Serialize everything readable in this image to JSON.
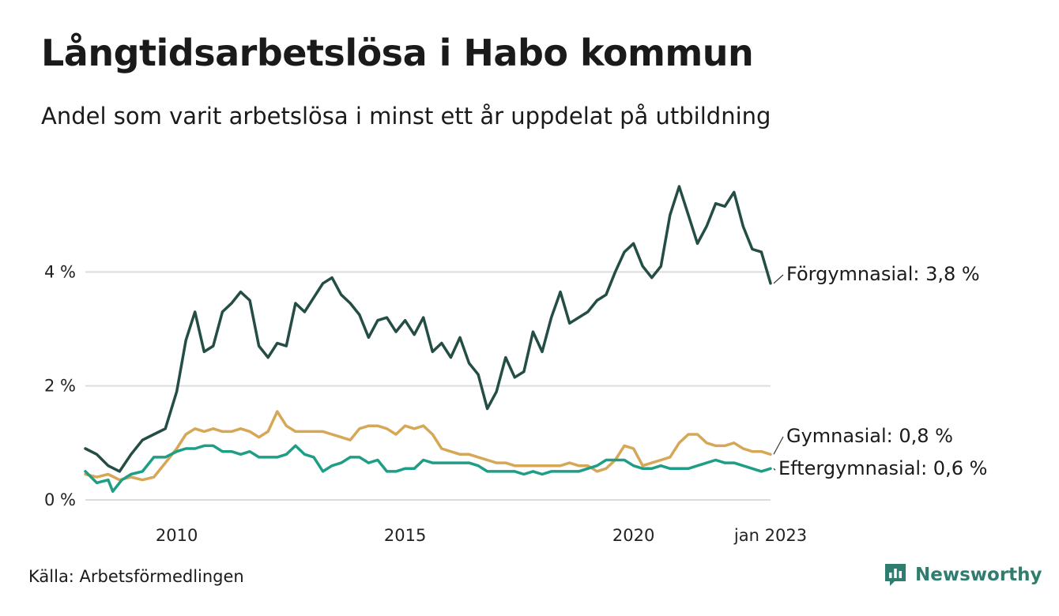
{
  "chart_data": {
    "type": "line",
    "title": "Långtidsarbetslösa i Habo kommun",
    "subtitle": "Andel som varit arbetslösa i minst ett år uppdelat på utbildning",
    "source": "Källa: Arbetsförmedlingen",
    "brand": "Newsworthy",
    "y_ticks": [
      {
        "value": 0,
        "label": "0 %"
      },
      {
        "value": 2,
        "label": "2 %"
      },
      {
        "value": 4,
        "label": "4 %"
      }
    ],
    "x_ticks": [
      {
        "value": 2010,
        "label": "2010"
      },
      {
        "value": 2015,
        "label": "2015"
      },
      {
        "value": 2020,
        "label": "2020"
      },
      {
        "value": 2023,
        "label": "jan 2023"
      }
    ],
    "xlim": [
      2008.0,
      2023.0
    ],
    "ylim": [
      0,
      6
    ],
    "grid": true,
    "legend": "end-labels",
    "series": [
      {
        "name": "Förgymnasial",
        "end_label": "Förgymnasial: 3,8 %",
        "color": "#234d45",
        "points": [
          [
            2008.0,
            0.9
          ],
          [
            2008.25,
            0.8
          ],
          [
            2008.5,
            0.6
          ],
          [
            2008.75,
            0.5
          ],
          [
            2009.0,
            0.8
          ],
          [
            2009.25,
            1.05
          ],
          [
            2009.5,
            1.15
          ],
          [
            2009.75,
            1.25
          ],
          [
            2010.0,
            1.9
          ],
          [
            2010.2,
            2.8
          ],
          [
            2010.4,
            3.3
          ],
          [
            2010.6,
            2.6
          ],
          [
            2010.8,
            2.7
          ],
          [
            2011.0,
            3.3
          ],
          [
            2011.2,
            3.45
          ],
          [
            2011.4,
            3.65
          ],
          [
            2011.6,
            3.5
          ],
          [
            2011.8,
            2.7
          ],
          [
            2012.0,
            2.5
          ],
          [
            2012.2,
            2.75
          ],
          [
            2012.4,
            2.7
          ],
          [
            2012.6,
            3.45
          ],
          [
            2012.8,
            3.3
          ],
          [
            2013.0,
            3.55
          ],
          [
            2013.2,
            3.8
          ],
          [
            2013.4,
            3.9
          ],
          [
            2013.6,
            3.6
          ],
          [
            2013.8,
            3.45
          ],
          [
            2014.0,
            3.25
          ],
          [
            2014.2,
            2.85
          ],
          [
            2014.4,
            3.15
          ],
          [
            2014.6,
            3.2
          ],
          [
            2014.8,
            2.95
          ],
          [
            2015.0,
            3.15
          ],
          [
            2015.2,
            2.9
          ],
          [
            2015.4,
            3.2
          ],
          [
            2015.6,
            2.6
          ],
          [
            2015.8,
            2.75
          ],
          [
            2016.0,
            2.5
          ],
          [
            2016.2,
            2.85
          ],
          [
            2016.4,
            2.4
          ],
          [
            2016.6,
            2.2
          ],
          [
            2016.8,
            1.6
          ],
          [
            2017.0,
            1.9
          ],
          [
            2017.2,
            2.5
          ],
          [
            2017.4,
            2.15
          ],
          [
            2017.6,
            2.25
          ],
          [
            2017.8,
            2.95
          ],
          [
            2018.0,
            2.6
          ],
          [
            2018.2,
            3.2
          ],
          [
            2018.4,
            3.65
          ],
          [
            2018.6,
            3.1
          ],
          [
            2018.8,
            3.2
          ],
          [
            2019.0,
            3.3
          ],
          [
            2019.2,
            3.5
          ],
          [
            2019.4,
            3.6
          ],
          [
            2019.6,
            4.0
          ],
          [
            2019.8,
            4.35
          ],
          [
            2020.0,
            4.5
          ],
          [
            2020.2,
            4.1
          ],
          [
            2020.4,
            3.9
          ],
          [
            2020.6,
            4.1
          ],
          [
            2020.8,
            5.0
          ],
          [
            2021.0,
            5.5
          ],
          [
            2021.2,
            5.0
          ],
          [
            2021.4,
            4.5
          ],
          [
            2021.6,
            4.8
          ],
          [
            2021.8,
            5.2
          ],
          [
            2022.0,
            5.15
          ],
          [
            2022.2,
            5.4
          ],
          [
            2022.4,
            4.8
          ],
          [
            2022.6,
            4.4
          ],
          [
            2022.8,
            4.35
          ],
          [
            2023.0,
            3.8
          ]
        ]
      },
      {
        "name": "Gymnasial",
        "end_label": "Gymnasial: 0,8 %",
        "color": "#d6a756",
        "points": [
          [
            2008.0,
            0.45
          ],
          [
            2008.25,
            0.4
          ],
          [
            2008.5,
            0.45
          ],
          [
            2008.75,
            0.35
          ],
          [
            2009.0,
            0.4
          ],
          [
            2009.25,
            0.35
          ],
          [
            2009.5,
            0.4
          ],
          [
            2009.75,
            0.65
          ],
          [
            2010.0,
            0.9
          ],
          [
            2010.2,
            1.15
          ],
          [
            2010.4,
            1.25
          ],
          [
            2010.6,
            1.2
          ],
          [
            2010.8,
            1.25
          ],
          [
            2011.0,
            1.2
          ],
          [
            2011.2,
            1.2
          ],
          [
            2011.4,
            1.25
          ],
          [
            2011.6,
            1.2
          ],
          [
            2011.8,
            1.1
          ],
          [
            2012.0,
            1.2
          ],
          [
            2012.2,
            1.55
          ],
          [
            2012.4,
            1.3
          ],
          [
            2012.6,
            1.2
          ],
          [
            2012.8,
            1.2
          ],
          [
            2013.0,
            1.2
          ],
          [
            2013.2,
            1.2
          ],
          [
            2013.4,
            1.15
          ],
          [
            2013.6,
            1.1
          ],
          [
            2013.8,
            1.05
          ],
          [
            2014.0,
            1.25
          ],
          [
            2014.2,
            1.3
          ],
          [
            2014.4,
            1.3
          ],
          [
            2014.6,
            1.25
          ],
          [
            2014.8,
            1.15
          ],
          [
            2015.0,
            1.3
          ],
          [
            2015.2,
            1.25
          ],
          [
            2015.4,
            1.3
          ],
          [
            2015.6,
            1.15
          ],
          [
            2015.8,
            0.9
          ],
          [
            2016.0,
            0.85
          ],
          [
            2016.2,
            0.8
          ],
          [
            2016.4,
            0.8
          ],
          [
            2016.6,
            0.75
          ],
          [
            2016.8,
            0.7
          ],
          [
            2017.0,
            0.65
          ],
          [
            2017.2,
            0.65
          ],
          [
            2017.4,
            0.6
          ],
          [
            2017.6,
            0.6
          ],
          [
            2017.8,
            0.6
          ],
          [
            2018.0,
            0.6
          ],
          [
            2018.2,
            0.6
          ],
          [
            2018.4,
            0.6
          ],
          [
            2018.6,
            0.65
          ],
          [
            2018.8,
            0.6
          ],
          [
            2019.0,
            0.6
          ],
          [
            2019.2,
            0.5
          ],
          [
            2019.4,
            0.55
          ],
          [
            2019.6,
            0.7
          ],
          [
            2019.8,
            0.95
          ],
          [
            2020.0,
            0.9
          ],
          [
            2020.2,
            0.6
          ],
          [
            2020.4,
            0.65
          ],
          [
            2020.6,
            0.7
          ],
          [
            2020.8,
            0.75
          ],
          [
            2021.0,
            1.0
          ],
          [
            2021.2,
            1.15
          ],
          [
            2021.4,
            1.15
          ],
          [
            2021.6,
            1.0
          ],
          [
            2021.8,
            0.95
          ],
          [
            2022.0,
            0.95
          ],
          [
            2022.2,
            1.0
          ],
          [
            2022.4,
            0.9
          ],
          [
            2022.6,
            0.85
          ],
          [
            2022.8,
            0.85
          ],
          [
            2023.0,
            0.8
          ]
        ]
      },
      {
        "name": "Eftergymnasial",
        "end_label": "Eftergymnasial: 0,6 %",
        "color": "#1e9e87",
        "points": [
          [
            2008.0,
            0.5
          ],
          [
            2008.25,
            0.3
          ],
          [
            2008.5,
            0.35
          ],
          [
            2008.6,
            0.15
          ],
          [
            2008.8,
            0.35
          ],
          [
            2009.0,
            0.45
          ],
          [
            2009.25,
            0.5
          ],
          [
            2009.5,
            0.75
          ],
          [
            2009.75,
            0.75
          ],
          [
            2010.0,
            0.85
          ],
          [
            2010.2,
            0.9
          ],
          [
            2010.4,
            0.9
          ],
          [
            2010.6,
            0.95
          ],
          [
            2010.8,
            0.95
          ],
          [
            2011.0,
            0.85
          ],
          [
            2011.2,
            0.85
          ],
          [
            2011.4,
            0.8
          ],
          [
            2011.6,
            0.85
          ],
          [
            2011.8,
            0.75
          ],
          [
            2012.0,
            0.75
          ],
          [
            2012.2,
            0.75
          ],
          [
            2012.4,
            0.8
          ],
          [
            2012.6,
            0.95
          ],
          [
            2012.8,
            0.8
          ],
          [
            2013.0,
            0.75
          ],
          [
            2013.2,
            0.5
          ],
          [
            2013.4,
            0.6
          ],
          [
            2013.6,
            0.65
          ],
          [
            2013.8,
            0.75
          ],
          [
            2014.0,
            0.75
          ],
          [
            2014.2,
            0.65
          ],
          [
            2014.4,
            0.7
          ],
          [
            2014.6,
            0.5
          ],
          [
            2014.8,
            0.5
          ],
          [
            2015.0,
            0.55
          ],
          [
            2015.2,
            0.55
          ],
          [
            2015.4,
            0.7
          ],
          [
            2015.6,
            0.65
          ],
          [
            2015.8,
            0.65
          ],
          [
            2016.0,
            0.65
          ],
          [
            2016.2,
            0.65
          ],
          [
            2016.4,
            0.65
          ],
          [
            2016.6,
            0.6
          ],
          [
            2016.8,
            0.5
          ],
          [
            2017.0,
            0.5
          ],
          [
            2017.2,
            0.5
          ],
          [
            2017.4,
            0.5
          ],
          [
            2017.6,
            0.45
          ],
          [
            2017.8,
            0.5
          ],
          [
            2018.0,
            0.45
          ],
          [
            2018.2,
            0.5
          ],
          [
            2018.4,
            0.5
          ],
          [
            2018.6,
            0.5
          ],
          [
            2018.8,
            0.5
          ],
          [
            2019.0,
            0.55
          ],
          [
            2019.2,
            0.6
          ],
          [
            2019.4,
            0.7
          ],
          [
            2019.6,
            0.7
          ],
          [
            2019.8,
            0.7
          ],
          [
            2020.0,
            0.6
          ],
          [
            2020.2,
            0.55
          ],
          [
            2020.4,
            0.55
          ],
          [
            2020.6,
            0.6
          ],
          [
            2020.8,
            0.55
          ],
          [
            2021.0,
            0.55
          ],
          [
            2021.2,
            0.55
          ],
          [
            2021.4,
            0.6
          ],
          [
            2021.6,
            0.65
          ],
          [
            2021.8,
            0.7
          ],
          [
            2022.0,
            0.65
          ],
          [
            2022.2,
            0.65
          ],
          [
            2022.4,
            0.6
          ],
          [
            2022.6,
            0.55
          ],
          [
            2022.8,
            0.5
          ],
          [
            2023.0,
            0.55
          ]
        ]
      }
    ]
  }
}
